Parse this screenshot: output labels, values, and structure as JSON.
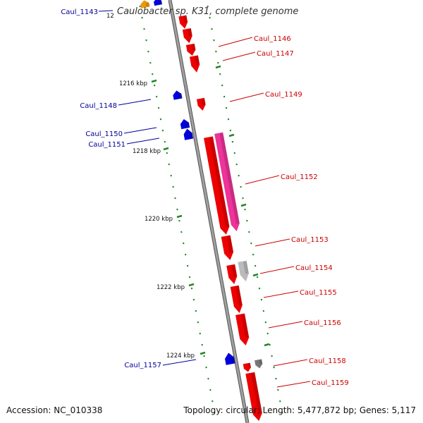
{
  "title": "Caulobacter sp. K31, complete genome",
  "footer": {
    "accession": "Accession: NC_010338",
    "topology": "Topology: circular; Length: 5,477,872 bp; Genes: 5,117"
  },
  "colors": {
    "forward_gene": "#ee0000",
    "reverse_gene": "#0000dd",
    "pseudo_gene": "#ee3399",
    "other_gene": "#bbbbbb",
    "dark_gene": "#777777",
    "orange_gene": "#ee9900",
    "tick": "#228822",
    "forward_label": "#cc0000",
    "reverse_label": "#000099",
    "backbone": "#888888"
  },
  "kbp_ticks": [
    "1216 kbp",
    "1218 kbp",
    "1220 kbp",
    "1222 kbp",
    "1224 kbp"
  ],
  "partial_tick": "12",
  "genes": {
    "forward": [
      "Caul_1146",
      "Caul_1147",
      "Caul_1149",
      "Caul_1152",
      "Caul_1153",
      "Caul_1154",
      "Caul_1155",
      "Caul_1156",
      "Caul_1158",
      "Caul_1159"
    ],
    "reverse": [
      "Caul_1143",
      "Caul_1148",
      "Caul_1150",
      "Caul_1151",
      "Caul_1157"
    ]
  }
}
